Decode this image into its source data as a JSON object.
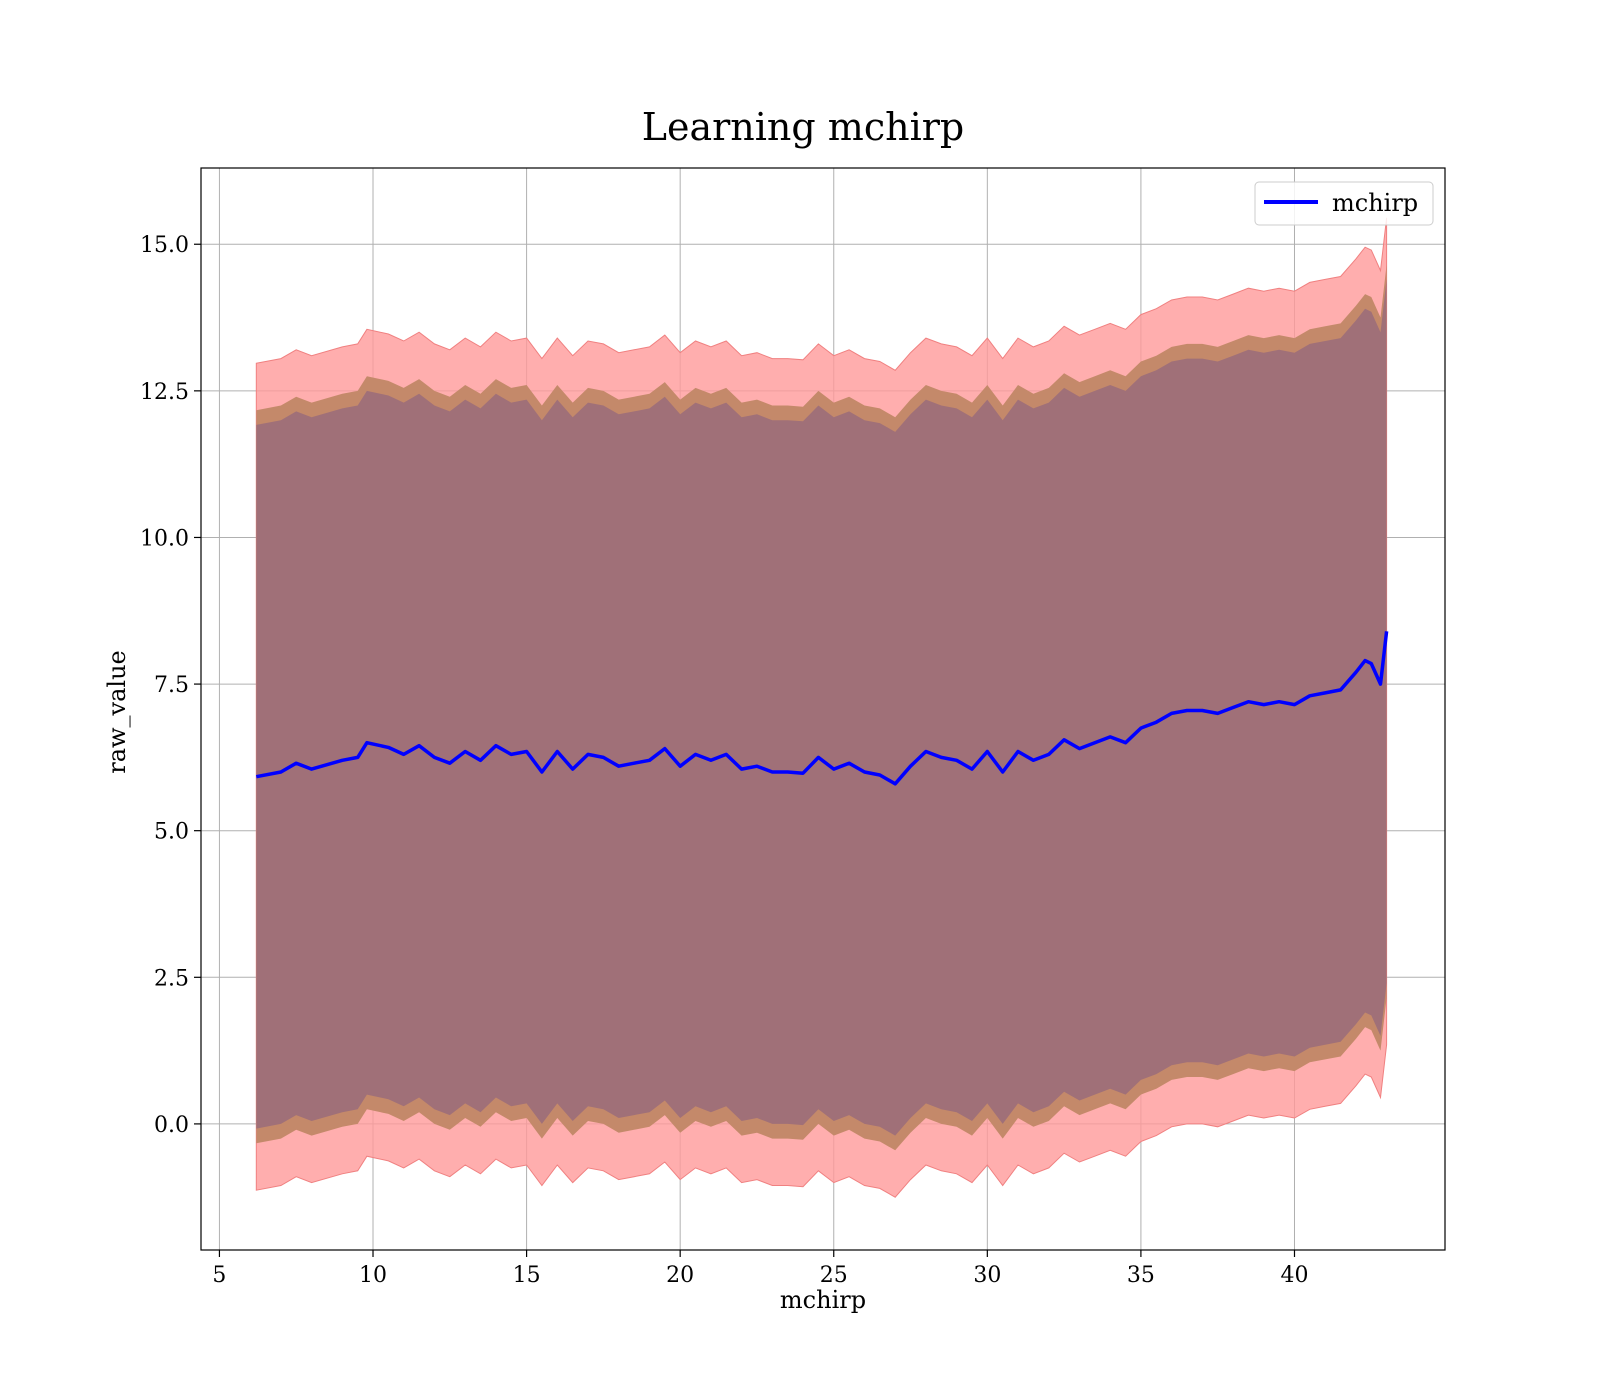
{
  "chart_data": {
    "type": "line",
    "title": "Learning mchirp",
    "xlabel": "mchirp",
    "ylabel": "raw_value",
    "xlim": [
      4.4,
      44.9
    ],
    "ylim": [
      -2.15,
      16.3
    ],
    "xticks": [
      5,
      10,
      15,
      20,
      25,
      30,
      35,
      40
    ],
    "yticks": [
      0.0,
      2.5,
      5.0,
      7.5,
      10.0,
      12.5,
      15.0
    ],
    "xtick_labels": [
      "5",
      "10",
      "15",
      "20",
      "25",
      "30",
      "35",
      "40"
    ],
    "ytick_labels": [
      "0.0",
      "2.5",
      "5.0",
      "7.5",
      "10.0",
      "12.5",
      "15.0"
    ],
    "grid": true,
    "legend": {
      "position": "top-right",
      "entries": [
        "mchirp"
      ]
    },
    "colors": {
      "line": "#0000ff",
      "outer_band": "#ff9a9a",
      "middle_band": "#c4896a",
      "inner_band": "#a07078",
      "grid": "#b0b0b0"
    },
    "series": [
      {
        "name": "mchirp",
        "x": [
          6.2,
          7.0,
          7.5,
          8.0,
          9.0,
          9.5,
          9.8,
          10.5,
          11.0,
          11.5,
          12.0,
          12.5,
          13.0,
          13.5,
          14.0,
          14.5,
          15.0,
          15.5,
          16.0,
          16.5,
          17.0,
          17.5,
          18.0,
          18.5,
          19.0,
          19.5,
          20.0,
          20.5,
          21.0,
          21.5,
          22.0,
          22.5,
          23.0,
          23.5,
          24.0,
          24.5,
          25.0,
          25.5,
          26.0,
          26.5,
          27.0,
          27.5,
          28.0,
          28.5,
          29.0,
          29.5,
          30.0,
          30.5,
          31.0,
          31.5,
          32.0,
          32.5,
          33.0,
          33.5,
          34.0,
          34.5,
          35.0,
          35.5,
          36.0,
          36.5,
          37.0,
          37.5,
          38.0,
          38.5,
          39.0,
          39.5,
          40.0,
          40.5,
          41.0,
          41.5,
          42.0,
          42.3,
          42.5,
          42.8,
          43.0
        ],
        "y": [
          5.92,
          6.0,
          6.15,
          6.05,
          6.2,
          6.25,
          6.5,
          6.42,
          6.3,
          6.45,
          6.25,
          6.15,
          6.35,
          6.2,
          6.45,
          6.3,
          6.35,
          6.0,
          6.35,
          6.05,
          6.3,
          6.25,
          6.1,
          6.15,
          6.2,
          6.4,
          6.1,
          6.3,
          6.2,
          6.3,
          6.05,
          6.1,
          6.0,
          6.0,
          5.98,
          6.25,
          6.05,
          6.15,
          6.0,
          5.95,
          5.8,
          6.1,
          6.35,
          6.25,
          6.2,
          6.05,
          6.35,
          6.0,
          6.35,
          6.2,
          6.3,
          6.55,
          6.4,
          6.5,
          6.6,
          6.5,
          6.75,
          6.85,
          7.0,
          7.05,
          7.05,
          7.0,
          7.1,
          7.2,
          7.15,
          7.2,
          7.15,
          7.3,
          7.35,
          7.4,
          7.7,
          7.9,
          7.85,
          7.5,
          8.4
        ]
      }
    ],
    "bands": {
      "inner": {
        "halfwidth": 6.0
      },
      "middle": {
        "halfwidth": 6.25
      },
      "outer": {
        "halfwidth": 7.05
      }
    }
  }
}
